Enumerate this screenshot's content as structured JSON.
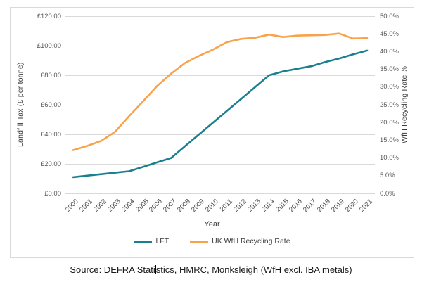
{
  "source_note": {
    "prefix": "Source: DEFRA Stati",
    "suffix": "stics, HMRC, Monksleigh (WfH excl. IBA metals)"
  },
  "colors": {
    "lft_line": "#1A7F8E",
    "recycling_line": "#F9A24B",
    "gridline": "#D9D9D9",
    "tick_text": "#595959",
    "chart_border": "#D9D9D9"
  },
  "chart_data": {
    "type": "line",
    "title": "",
    "xlabel": "Year",
    "ylabel_left": "Landfill Tax (£ per tonne)",
    "ylabel_right": "WfH Recycling Rate %",
    "grid": "horizontal",
    "legend_position": "bottom",
    "x": [
      2000,
      2001,
      2002,
      2003,
      2004,
      2005,
      2006,
      2007,
      2008,
      2009,
      2010,
      2011,
      2012,
      2013,
      2014,
      2015,
      2016,
      2017,
      2018,
      2019,
      2020,
      2021
    ],
    "series": [
      {
        "name": "LFT",
        "axis": "left",
        "color": "#1A7F8E",
        "values": [
          11,
          12,
          13,
          14,
          15,
          18,
          21,
          24,
          32,
          40,
          48,
          56,
          64,
          72,
          80,
          82.6,
          84.4,
          86.1,
          88.95,
          91.35,
          94.15,
          96.7
        ]
      },
      {
        "name": "UK WfH Recycling Rate",
        "axis": "right",
        "color": "#F9A24B",
        "values": [
          12.2,
          13.4,
          14.8,
          17.4,
          21.8,
          26.0,
          30.3,
          33.8,
          36.8,
          38.8,
          40.6,
          42.7,
          43.6,
          43.9,
          44.8,
          44.1,
          44.5,
          44.6,
          44.7,
          45.1,
          43.7,
          43.8
        ]
      }
    ],
    "left_axis": {
      "min": 0,
      "max": 120,
      "tick_step": 20,
      "tick_values": [
        0,
        20,
        40,
        60,
        80,
        100,
        120
      ],
      "tick_labels": [
        "£0.00",
        "£20.00",
        "£40.00",
        "£60.00",
        "£80.00",
        "£100.00",
        "£120.00"
      ]
    },
    "right_axis": {
      "min": 0,
      "max": 50,
      "tick_step": 5,
      "tick_values": [
        0,
        5,
        10,
        15,
        20,
        25,
        30,
        35,
        40,
        45,
        50
      ],
      "tick_labels": [
        "0.0%",
        "5.0%",
        "10.0%",
        "15.0%",
        "20.0%",
        "25.0%",
        "30.0%",
        "35.0%",
        "40.0%",
        "45.0%",
        "50.0%"
      ]
    }
  }
}
